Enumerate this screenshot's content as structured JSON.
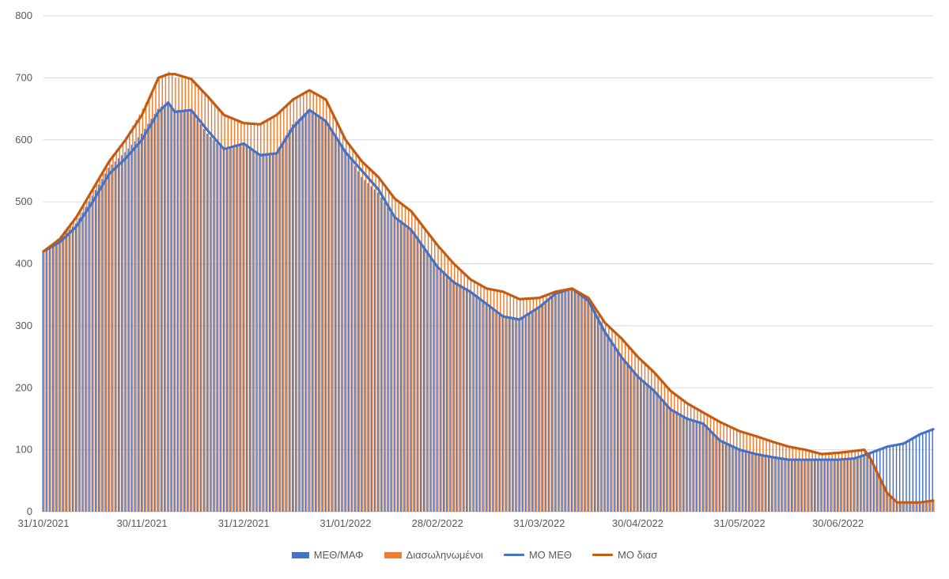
{
  "chart_data": {
    "type": "bar",
    "title": "",
    "xlabel": "",
    "ylabel": "",
    "x_start": "31/10/2021",
    "x_end": "29/07/2022",
    "ylim": [
      0,
      800
    ],
    "y_ticks": [
      "0",
      "100",
      "200",
      "300",
      "400",
      "500",
      "600",
      "700",
      "800"
    ],
    "x_ticks": [
      "31/10/2021",
      "30/11/2021",
      "31/12/2021",
      "31/01/2022",
      "28/02/2022",
      "31/03/2022",
      "30/04/2022",
      "31/05/2022",
      "30/06/2022"
    ],
    "grid": "horizontal",
    "legend_position": "bottom",
    "colors": {
      "bar_icu": "#4472C4",
      "bar_intubated": "#ED7D31",
      "line_icu": "#4472C4",
      "line_intubated": "#C55A11",
      "grid": "#D9D9D9"
    },
    "series": [
      {
        "name": "ΜΕΘ/ΜΑΦ",
        "kind": "bar",
        "points": [
          [
            "31/10/2021",
            420
          ],
          [
            "05/11/2021",
            440
          ],
          [
            "10/11/2021",
            465
          ],
          [
            "15/11/2021",
            510
          ],
          [
            "20/11/2021",
            555
          ],
          [
            "25/11/2021",
            580
          ],
          [
            "30/11/2021",
            610
          ],
          [
            "05/12/2021",
            650
          ],
          [
            "08/12/2021",
            660
          ],
          [
            "10/12/2021",
            648
          ],
          [
            "15/12/2021",
            648
          ],
          [
            "20/12/2021",
            610
          ],
          [
            "25/12/2021",
            585
          ],
          [
            "31/12/2021",
            592
          ],
          [
            "05/01/2022",
            578
          ],
          [
            "10/01/2022",
            580
          ],
          [
            "15/01/2022",
            625
          ],
          [
            "20/01/2022",
            648
          ],
          [
            "25/01/2022",
            630
          ],
          [
            "31/01/2022",
            585
          ],
          [
            "05/02/2022",
            540
          ],
          [
            "10/02/2022",
            515
          ],
          [
            "15/02/2022",
            475
          ],
          [
            "20/02/2022",
            455
          ],
          [
            "28/02/2022",
            395
          ],
          [
            "05/03/2022",
            370
          ],
          [
            "10/03/2022",
            355
          ],
          [
            "15/03/2022",
            335
          ],
          [
            "20/03/2022",
            315
          ],
          [
            "25/03/2022",
            310
          ],
          [
            "31/03/2022",
            328
          ],
          [
            "05/04/2022",
            350
          ],
          [
            "10/04/2022",
            360
          ],
          [
            "15/04/2022",
            340
          ],
          [
            "20/04/2022",
            290
          ],
          [
            "25/04/2022",
            250
          ],
          [
            "30/04/2022",
            218
          ],
          [
            "05/05/2022",
            195
          ],
          [
            "10/05/2022",
            165
          ],
          [
            "15/05/2022",
            150
          ],
          [
            "20/05/2022",
            140
          ],
          [
            "25/05/2022",
            115
          ],
          [
            "31/05/2022",
            100
          ],
          [
            "05/06/2022",
            93
          ],
          [
            "10/06/2022",
            88
          ],
          [
            "15/06/2022",
            84
          ],
          [
            "20/06/2022",
            84
          ],
          [
            "25/06/2022",
            84
          ],
          [
            "30/06/2022",
            84
          ],
          [
            "05/07/2022",
            85
          ],
          [
            "10/07/2022",
            95
          ],
          [
            "15/07/2022",
            105
          ],
          [
            "20/07/2022",
            110
          ],
          [
            "25/07/2022",
            125
          ],
          [
            "29/07/2022",
            135
          ]
        ]
      },
      {
        "name": "Διασωληνωμένοι",
        "kind": "bar",
        "points": [
          [
            "31/10/2021",
            420
          ],
          [
            "05/11/2021",
            445
          ],
          [
            "10/11/2021",
            480
          ],
          [
            "15/11/2021",
            525
          ],
          [
            "20/11/2021",
            570
          ],
          [
            "25/11/2021",
            605
          ],
          [
            "30/11/2021",
            650
          ],
          [
            "05/12/2021",
            700
          ],
          [
            "08/12/2021",
            710
          ],
          [
            "10/12/2021",
            700
          ],
          [
            "15/12/2021",
            700
          ],
          [
            "20/12/2021",
            670
          ],
          [
            "25/12/2021",
            640
          ],
          [
            "31/12/2021",
            625
          ],
          [
            "05/01/2022",
            625
          ],
          [
            "10/01/2022",
            640
          ],
          [
            "15/01/2022",
            665
          ],
          [
            "20/01/2022",
            680
          ],
          [
            "25/01/2022",
            665
          ],
          [
            "31/01/2022",
            600
          ],
          [
            "05/02/2022",
            565
          ],
          [
            "10/02/2022",
            540
          ],
          [
            "15/02/2022",
            505
          ],
          [
            "20/02/2022",
            485
          ],
          [
            "28/02/2022",
            430
          ],
          [
            "05/03/2022",
            400
          ],
          [
            "10/03/2022",
            375
          ],
          [
            "15/03/2022",
            360
          ],
          [
            "20/03/2022",
            355
          ],
          [
            "25/03/2022",
            343
          ],
          [
            "31/03/2022",
            345
          ],
          [
            "05/04/2022",
            355
          ],
          [
            "10/04/2022",
            358
          ],
          [
            "15/04/2022",
            345
          ],
          [
            "20/04/2022",
            305
          ],
          [
            "25/04/2022",
            280
          ],
          [
            "30/04/2022",
            250
          ],
          [
            "05/05/2022",
            225
          ],
          [
            "10/05/2022",
            195
          ],
          [
            "15/05/2022",
            175
          ],
          [
            "20/05/2022",
            160
          ],
          [
            "25/05/2022",
            145
          ],
          [
            "31/05/2022",
            130
          ],
          [
            "05/06/2022",
            122
          ],
          [
            "10/06/2022",
            113
          ],
          [
            "15/06/2022",
            105
          ],
          [
            "20/06/2022",
            100
          ],
          [
            "25/06/2022",
            93
          ],
          [
            "30/06/2022",
            95
          ],
          [
            "05/07/2022",
            98
          ],
          [
            "08/07/2022",
            100
          ],
          [
            "10/07/2022",
            85
          ],
          [
            "15/07/2022",
            30
          ],
          [
            "18/07/2022",
            15
          ],
          [
            "25/07/2022",
            15
          ],
          [
            "29/07/2022",
            18
          ]
        ]
      },
      {
        "name": "ΜΟ ΜΕΘ",
        "kind": "line",
        "points": [
          [
            "31/10/2021",
            420
          ],
          [
            "05/11/2021",
            435
          ],
          [
            "10/11/2021",
            460
          ],
          [
            "15/11/2021",
            500
          ],
          [
            "20/11/2021",
            545
          ],
          [
            "25/11/2021",
            570
          ],
          [
            "30/11/2021",
            600
          ],
          [
            "05/12/2021",
            645
          ],
          [
            "08/12/2021",
            660
          ],
          [
            "10/12/2021",
            645
          ],
          [
            "15/12/2021",
            648
          ],
          [
            "20/12/2021",
            615
          ],
          [
            "25/12/2021",
            585
          ],
          [
            "31/12/2021",
            594
          ],
          [
            "05/01/2022",
            575
          ],
          [
            "10/01/2022",
            578
          ],
          [
            "15/01/2022",
            620
          ],
          [
            "20/01/2022",
            648
          ],
          [
            "25/01/2022",
            630
          ],
          [
            "31/01/2022",
            580
          ],
          [
            "05/02/2022",
            550
          ],
          [
            "10/02/2022",
            520
          ],
          [
            "15/02/2022",
            475
          ],
          [
            "20/02/2022",
            455
          ],
          [
            "28/02/2022",
            395
          ],
          [
            "05/03/2022",
            370
          ],
          [
            "10/03/2022",
            355
          ],
          [
            "15/03/2022",
            335
          ],
          [
            "20/03/2022",
            315
          ],
          [
            "25/03/2022",
            310
          ],
          [
            "31/03/2022",
            330
          ],
          [
            "05/04/2022",
            352
          ],
          [
            "10/04/2022",
            360
          ],
          [
            "15/04/2022",
            340
          ],
          [
            "20/04/2022",
            290
          ],
          [
            "25/04/2022",
            250
          ],
          [
            "30/04/2022",
            218
          ],
          [
            "05/05/2022",
            195
          ],
          [
            "10/05/2022",
            165
          ],
          [
            "15/05/2022",
            150
          ],
          [
            "20/05/2022",
            142
          ],
          [
            "25/05/2022",
            115
          ],
          [
            "31/05/2022",
            100
          ],
          [
            "05/06/2022",
            93
          ],
          [
            "10/06/2022",
            88
          ],
          [
            "15/06/2022",
            84
          ],
          [
            "20/06/2022",
            84
          ],
          [
            "25/06/2022",
            84
          ],
          [
            "30/06/2022",
            84
          ],
          [
            "05/07/2022",
            86
          ],
          [
            "10/07/2022",
            95
          ],
          [
            "15/07/2022",
            105
          ],
          [
            "20/07/2022",
            110
          ],
          [
            "25/07/2022",
            125
          ],
          [
            "29/07/2022",
            133
          ]
        ]
      },
      {
        "name": "ΜΟ διασ",
        "kind": "line",
        "points": [
          [
            "31/10/2021",
            420
          ],
          [
            "05/11/2021",
            440
          ],
          [
            "10/11/2021",
            475
          ],
          [
            "15/11/2021",
            520
          ],
          [
            "20/11/2021",
            565
          ],
          [
            "25/11/2021",
            600
          ],
          [
            "30/11/2021",
            640
          ],
          [
            "05/12/2021",
            700
          ],
          [
            "08/12/2021",
            706
          ],
          [
            "10/12/2021",
            706
          ],
          [
            "15/12/2021",
            698
          ],
          [
            "20/12/2021",
            670
          ],
          [
            "25/12/2021",
            640
          ],
          [
            "31/12/2021",
            627
          ],
          [
            "05/01/2022",
            625
          ],
          [
            "10/01/2022",
            640
          ],
          [
            "15/01/2022",
            665
          ],
          [
            "20/01/2022",
            680
          ],
          [
            "25/01/2022",
            665
          ],
          [
            "31/01/2022",
            600
          ],
          [
            "05/02/2022",
            565
          ],
          [
            "10/02/2022",
            540
          ],
          [
            "15/02/2022",
            505
          ],
          [
            "20/02/2022",
            485
          ],
          [
            "28/02/2022",
            430
          ],
          [
            "05/03/2022",
            400
          ],
          [
            "10/03/2022",
            375
          ],
          [
            "15/03/2022",
            360
          ],
          [
            "20/03/2022",
            355
          ],
          [
            "25/03/2022",
            343
          ],
          [
            "31/03/2022",
            345
          ],
          [
            "05/04/2022",
            355
          ],
          [
            "10/04/2022",
            360
          ],
          [
            "15/04/2022",
            345
          ],
          [
            "20/04/2022",
            305
          ],
          [
            "25/04/2022",
            280
          ],
          [
            "30/04/2022",
            250
          ],
          [
            "05/05/2022",
            225
          ],
          [
            "10/05/2022",
            195
          ],
          [
            "15/05/2022",
            175
          ],
          [
            "20/05/2022",
            160
          ],
          [
            "25/05/2022",
            145
          ],
          [
            "31/05/2022",
            130
          ],
          [
            "05/06/2022",
            122
          ],
          [
            "10/06/2022",
            113
          ],
          [
            "15/06/2022",
            105
          ],
          [
            "20/06/2022",
            100
          ],
          [
            "25/06/2022",
            93
          ],
          [
            "30/06/2022",
            95
          ],
          [
            "05/07/2022",
            98
          ],
          [
            "08/07/2022",
            100
          ],
          [
            "10/07/2022",
            85
          ],
          [
            "15/07/2022",
            30
          ],
          [
            "18/07/2022",
            15
          ],
          [
            "25/07/2022",
            15
          ],
          [
            "29/07/2022",
            18
          ]
        ]
      }
    ]
  }
}
